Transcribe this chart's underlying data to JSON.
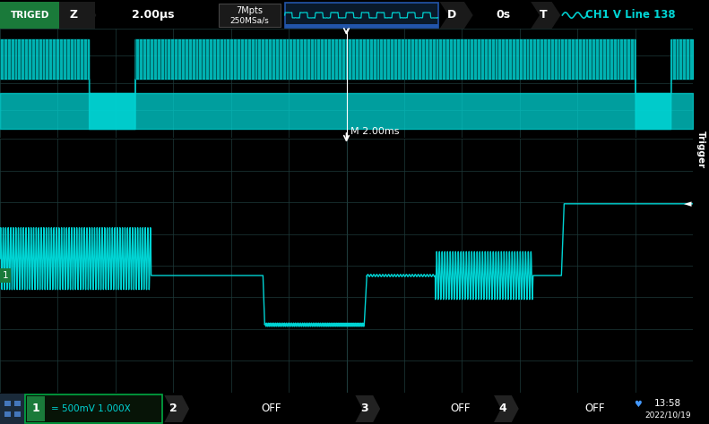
{
  "bg_color": "#000000",
  "screen_bg": "#050e0e",
  "grid_color": "#1e3a3a",
  "waveform_color": "#00d4d4",
  "header_bg": "#0d0d0d",
  "white": "#ffffff",
  "cyan_text": "#00d4d4",
  "green_btn": "#1a7a3a",
  "right_panel_bg": "#003d7a",
  "arrow_bg": "#2a2a2a",
  "ch1_bg": "#0a1a0a",
  "title": "TRIGED",
  "time_div": "2.00μs",
  "memory_top": "7Mpts",
  "memory_bot": "250MSa/s",
  "delay": "0s",
  "trigger_info": "CH1 V Line 138",
  "time_ref": "M 2.00ms",
  "time_hour": "13:58",
  "time_date": "2022/10/19",
  "ch1_label": "= 500mV 1.000X"
}
